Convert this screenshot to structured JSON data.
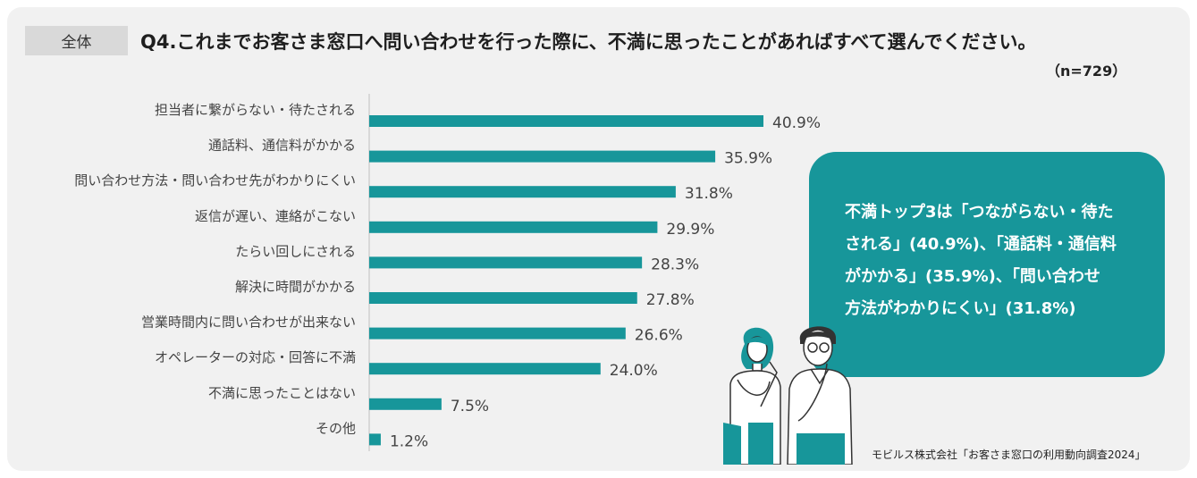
{
  "tag": "全体",
  "question": "Q4.これまでお客さま窓口へ問い合わせを行った際に、不満に思ったことがあればすべて選んでください。",
  "sample": "（n=729）",
  "colors": {
    "bar": "#17969a",
    "callout": "#17969a",
    "panel": "#f1f1f1"
  },
  "chart_data": {
    "type": "bar",
    "orientation": "horizontal",
    "categories": [
      "担当者に繋がらない・待たされる",
      "通話料、通信料がかかる",
      "問い合わせ方法・問い合わせ先がわかりにくい",
      "返信が遅い、連絡がこない",
      "たらい回しにされる",
      "解決に時間がかかる",
      "営業時間内に問い合わせが出来ない",
      "オペレーターの対応・回答に不満",
      "不満に思ったことはない",
      "その他"
    ],
    "values": [
      40.9,
      35.9,
      31.8,
      29.9,
      28.3,
      27.8,
      26.6,
      24.0,
      7.5,
      1.2
    ],
    "value_labels": [
      "40.9%",
      "35.9%",
      "31.8%",
      "29.9%",
      "28.3%",
      "27.8%",
      "26.6%",
      "24.0%",
      "7.5%",
      "1.2%"
    ],
    "unit": "%",
    "grid": false
  },
  "callout": {
    "lines": [
      "不満トップ3は「つながらない・待た",
      "される」(40.9%)、「通話料・通信料",
      "がかかる」(35.9%)、「問い合わせ",
      "方法がわかりにくい」(31.8%)"
    ]
  },
  "source": "モビルス株式会社「お客さま窓口の利用動向調査2024」",
  "illustration": {
    "name": "two-thinking-people-illustration"
  }
}
